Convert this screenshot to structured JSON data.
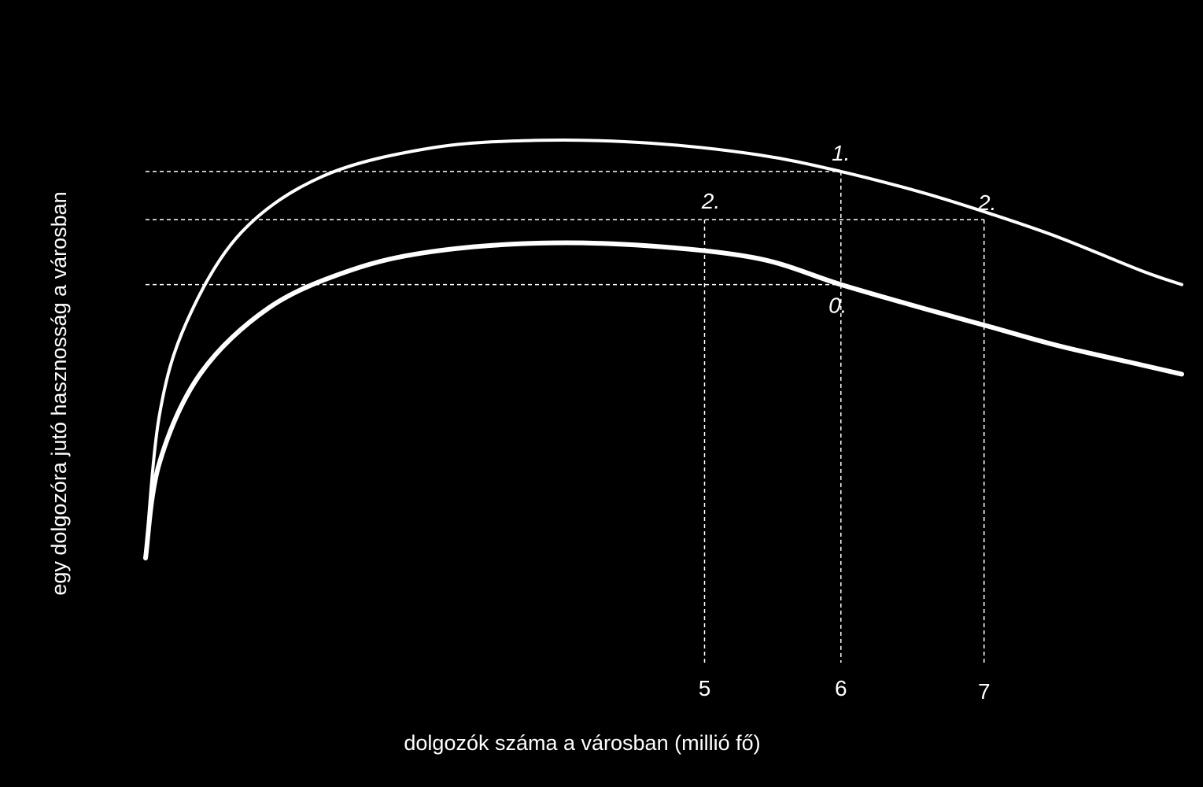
{
  "chart_data": {
    "type": "line",
    "xlabel": "dolgozók száma a városban (millió fő)",
    "ylabel": "egy dolgozóra jutó hasznosság  a városban",
    "x_ticks": [
      "5",
      "6",
      "7"
    ],
    "xlim": [
      0.9,
      8.5
    ],
    "ylim": [
      0,
      1
    ],
    "grid": false,
    "legend": "none",
    "series": [
      {
        "stroke_color": "#ffffff",
        "x": [
          0.9,
          1.0,
          1.2,
          1.6,
          2.2,
          3.0,
          3.8,
          4.6,
          5.4,
          6.0,
          6.6,
          7.1,
          7.6,
          8.2,
          8.5
        ],
        "y": [
          0.06,
          0.36,
          0.56,
          0.75,
          0.87,
          0.93,
          0.946,
          0.94,
          0.915,
          0.88,
          0.835,
          0.79,
          0.74,
          0.67,
          0.64
        ]
      },
      {
        "stroke_color": "#ffffff",
        "x": [
          0.9,
          1.0,
          1.3,
          1.8,
          2.4,
          3.0,
          3.8,
          4.6,
          5.4,
          6.0,
          6.6,
          7.1,
          7.6,
          8.2,
          8.5
        ],
        "y": [
          0.06,
          0.26,
          0.45,
          0.59,
          0.67,
          0.71,
          0.728,
          0.722,
          0.695,
          0.64,
          0.59,
          0.55,
          0.51,
          0.47,
          0.45
        ]
      }
    ],
    "points": [
      {
        "label": "1.",
        "x": 6.0,
        "y": 0.88
      },
      {
        "label": "2.",
        "x": 5.0,
        "y": 0.778
      },
      {
        "label": "0.",
        "x": 6.0,
        "y": 0.64
      },
      {
        "label": "2.",
        "x": 7.05,
        "y": 0.778
      }
    ],
    "guides": {
      "horizontal": [
        0.88,
        0.778,
        0.64
      ],
      "vertical": [
        5.0,
        6.0,
        7.05
      ]
    }
  }
}
